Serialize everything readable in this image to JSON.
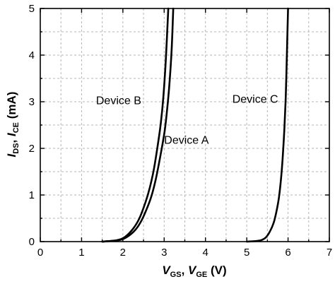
{
  "chart_data": {
    "type": "line",
    "xlabel": {
      "v1": "V",
      "s1": "GS",
      "sep": ", ",
      "v2": "V",
      "s2": "GE",
      "unit": " (V)"
    },
    "ylabel": {
      "v1": "I",
      "s1": "DS",
      "sep": ", ",
      "v2": "I",
      "s2": "CE",
      "unit": " (mA)"
    },
    "xlim": [
      0,
      7
    ],
    "ylim": [
      0,
      5
    ],
    "xticks": [
      0,
      1,
      2,
      3,
      4,
      5,
      6,
      7
    ],
    "yticks": [
      0,
      1,
      2,
      3,
      4,
      5
    ],
    "grid": true,
    "series": [
      {
        "name": "Device A",
        "x": [
          1.5,
          1.9,
          2.1,
          2.3,
          2.45,
          2.6,
          2.7,
          2.8,
          2.9,
          3.0,
          3.05,
          3.12,
          3.18,
          3.22
        ],
        "y": [
          0.0,
          0.03,
          0.1,
          0.25,
          0.45,
          0.75,
          1.0,
          1.35,
          1.8,
          2.3,
          2.65,
          3.3,
          4.1,
          5.0
        ]
      },
      {
        "name": "Device B",
        "x": [
          1.5,
          1.85,
          2.05,
          2.25,
          2.4,
          2.55,
          2.65,
          2.75,
          2.85,
          2.92,
          2.98,
          3.04,
          3.1
        ],
        "y": [
          0.0,
          0.03,
          0.1,
          0.28,
          0.5,
          0.85,
          1.15,
          1.55,
          2.1,
          2.55,
          3.1,
          3.9,
          5.0
        ]
      },
      {
        "name": "Device C",
        "x": [
          5.0,
          5.3,
          5.45,
          5.55,
          5.65,
          5.72,
          5.78,
          5.83,
          5.87,
          5.91,
          5.94,
          5.96,
          5.98,
          6.0
        ],
        "y": [
          0.0,
          0.02,
          0.08,
          0.2,
          0.4,
          0.65,
          0.95,
          1.35,
          1.8,
          2.4,
          3.0,
          3.6,
          4.3,
          5.0
        ]
      }
    ],
    "annotations": [
      {
        "text": "Device B",
        "x": 1.35,
        "y": 2.95
      },
      {
        "text": "Device A",
        "x": 3.0,
        "y": 2.1
      },
      {
        "text": "Device C",
        "x": 4.65,
        "y": 2.98
      }
    ]
  }
}
